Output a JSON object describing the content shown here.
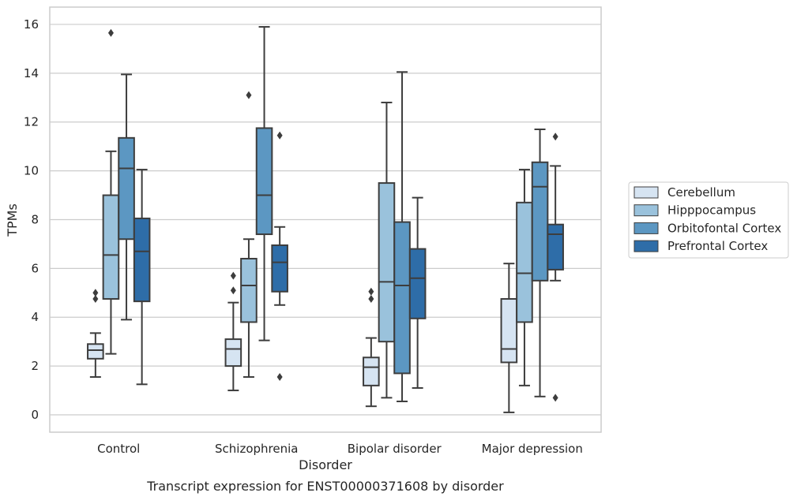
{
  "chart_data": {
    "type": "box",
    "title": "",
    "caption": "Transcript expression for ENST00000371608 by disorder",
    "xlabel": "Disorder",
    "ylabel": "TPMs",
    "categories": [
      "Control",
      "Schizophrenia",
      "Bipolar disorder",
      "Major depression"
    ],
    "yticks": [
      0,
      2,
      4,
      6,
      8,
      10,
      12,
      14,
      16
    ],
    "ylim": [
      -0.7,
      16.7
    ],
    "grid": true,
    "legend_position": "right",
    "series": [
      {
        "name": "Cerebellum",
        "color": "#d6e4f2",
        "boxes": [
          {
            "whisker_low": 1.55,
            "q1": 2.3,
            "median": 2.65,
            "q3": 2.9,
            "whisker_high": 3.35,
            "outliers": [
              4.75,
              5.0
            ]
          },
          {
            "whisker_low": 1.0,
            "q1": 2.0,
            "median": 2.7,
            "q3": 3.1,
            "whisker_high": 4.6,
            "outliers": [
              5.1,
              5.7
            ]
          },
          {
            "whisker_low": 0.35,
            "q1": 1.2,
            "median": 1.95,
            "q3": 2.35,
            "whisker_high": 3.15,
            "outliers": [
              4.75,
              5.05
            ]
          },
          {
            "whisker_low": 0.1,
            "q1": 2.15,
            "median": 2.7,
            "q3": 4.75,
            "whisker_high": 6.2,
            "outliers": []
          }
        ]
      },
      {
        "name": "Hipppocampus",
        "color": "#9ac2dc",
        "boxes": [
          {
            "whisker_low": 2.5,
            "q1": 4.75,
            "median": 6.55,
            "q3": 9.0,
            "whisker_high": 10.8,
            "outliers": [
              15.65
            ]
          },
          {
            "whisker_low": 1.55,
            "q1": 3.8,
            "median": 5.3,
            "q3": 6.4,
            "whisker_high": 7.2,
            "outliers": [
              13.1
            ]
          },
          {
            "whisker_low": 0.7,
            "q1": 3.0,
            "median": 5.45,
            "q3": 9.5,
            "whisker_high": 12.8,
            "outliers": []
          },
          {
            "whisker_low": 1.2,
            "q1": 3.8,
            "median": 5.8,
            "q3": 8.7,
            "whisker_high": 10.05,
            "outliers": []
          }
        ]
      },
      {
        "name": "Orbitofontal Cortex",
        "color": "#5c97c2",
        "boxes": [
          {
            "whisker_low": 3.9,
            "q1": 7.2,
            "median": 10.1,
            "q3": 11.35,
            "whisker_high": 13.95,
            "outliers": []
          },
          {
            "whisker_low": 3.05,
            "q1": 7.4,
            "median": 9.0,
            "q3": 11.75,
            "whisker_high": 15.9,
            "outliers": []
          },
          {
            "whisker_low": 0.55,
            "q1": 1.7,
            "median": 5.3,
            "q3": 7.9,
            "whisker_high": 14.05,
            "outliers": []
          },
          {
            "whisker_low": 0.75,
            "q1": 5.5,
            "median": 9.35,
            "q3": 10.35,
            "whisker_high": 11.7,
            "outliers": []
          }
        ]
      },
      {
        "name": "Prefrontal Cortex",
        "color": "#2e6da8",
        "boxes": [
          {
            "whisker_low": 1.25,
            "q1": 4.65,
            "median": 6.7,
            "q3": 8.05,
            "whisker_high": 10.05,
            "outliers": []
          },
          {
            "whisker_low": 4.5,
            "q1": 5.05,
            "median": 6.25,
            "q3": 6.95,
            "whisker_high": 7.7,
            "outliers": [
              1.55,
              11.45
            ]
          },
          {
            "whisker_low": 1.1,
            "q1": 3.95,
            "median": 5.6,
            "q3": 6.8,
            "whisker_high": 8.9,
            "outliers": []
          },
          {
            "whisker_low": 5.5,
            "q1": 5.95,
            "median": 7.4,
            "q3": 7.8,
            "whisker_high": 10.2,
            "outliers": [
              0.7,
              11.4
            ]
          }
        ]
      }
    ]
  }
}
